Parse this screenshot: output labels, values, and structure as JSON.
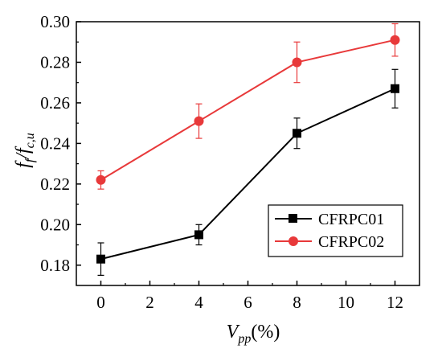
{
  "chart_data": {
    "type": "line",
    "title": "",
    "xlabel": {
      "main": "V",
      "sub": "pp",
      "suffix": "(%)"
    },
    "ylabel": {
      "f1": "f",
      "sub1": "f",
      "sep": "/",
      "f2": "f",
      "sub2": "c,u"
    },
    "xlim": [
      -1,
      13
    ],
    "ylim": [
      0.17,
      0.3
    ],
    "xticks": [
      0,
      2,
      4,
      6,
      8,
      10,
      12
    ],
    "yticks": [
      0.18,
      0.2,
      0.22,
      0.24,
      0.26,
      0.28,
      0.3
    ],
    "xtick_labels": [
      "0",
      "2",
      "4",
      "6",
      "8",
      "10",
      "12"
    ],
    "ytick_labels": [
      "0.18",
      "0.20",
      "0.22",
      "0.24",
      "0.26",
      "0.28",
      "0.30"
    ],
    "legend_position": "lower-right",
    "grid": false,
    "series": [
      {
        "name": "CFRPC01",
        "color": "#000000",
        "marker": "square",
        "x": [
          0,
          4,
          8,
          12
        ],
        "y": [
          0.183,
          0.195,
          0.245,
          0.267
        ],
        "err": [
          0.008,
          0.005,
          0.0075,
          0.0095
        ]
      },
      {
        "name": "CFRPC02",
        "color": "#e8393a",
        "marker": "circle",
        "x": [
          0,
          4,
          8,
          12
        ],
        "y": [
          0.222,
          0.251,
          0.28,
          0.291
        ],
        "err": [
          0.0045,
          0.0085,
          0.01,
          0.008
        ]
      }
    ]
  }
}
